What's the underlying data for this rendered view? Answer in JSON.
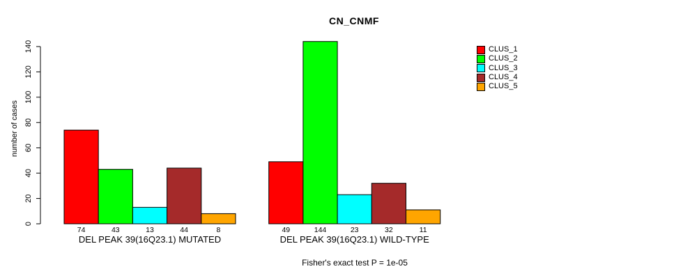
{
  "chart_data": {
    "type": "bar",
    "title": "CN_CNMF",
    "ylabel": "number of cases",
    "xlabel": "",
    "ylim": [
      0,
      140
    ],
    "yticks": [
      0,
      20,
      40,
      60,
      80,
      100,
      120,
      140
    ],
    "grid": false,
    "legend_position": "right",
    "series": [
      {
        "name": "CLUS_1",
        "color": "#FF0000"
      },
      {
        "name": "CLUS_2",
        "color": "#00FF00"
      },
      {
        "name": "CLUS_3",
        "color": "#00FFFF"
      },
      {
        "name": "CLUS_4",
        "color": "#A52A2A"
      },
      {
        "name": "CLUS_5",
        "color": "#FFA500"
      }
    ],
    "groups": [
      {
        "label": "DEL PEAK 39(16Q23.1) MUTATED",
        "values": [
          74,
          43,
          13,
          44,
          8
        ]
      },
      {
        "label": "DEL PEAK 39(16Q23.1) WILD-TYPE",
        "values": [
          49,
          144,
          23,
          32,
          11
        ]
      }
    ],
    "bar_value_labels": true,
    "annotation": "Fisher's exact test P = 1e-05",
    "colors": {
      "axis": "#000000",
      "bar_border": "#000000",
      "text": "#000000",
      "background": "#FFFFFF"
    }
  }
}
